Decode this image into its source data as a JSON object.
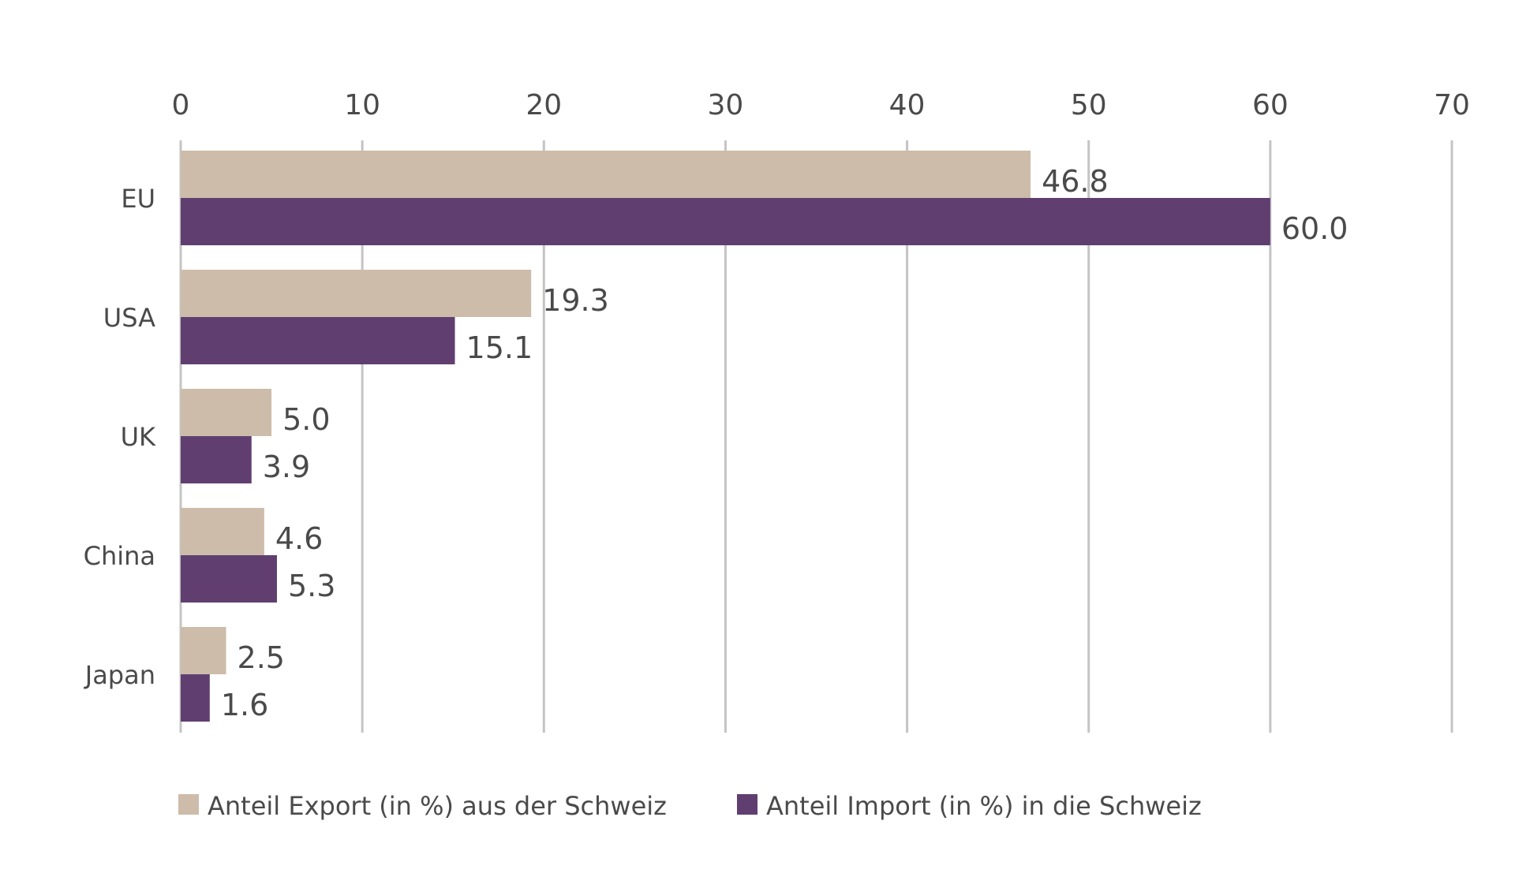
{
  "chart_data": {
    "type": "bar",
    "orientation": "horizontal",
    "categories": [
      "EU",
      "USA",
      "UK",
      "China",
      "Japan"
    ],
    "series": [
      {
        "name": "Anteil Export (in %) aus der Schweiz",
        "values": [
          46.8,
          19.3,
          5.0,
          4.6,
          2.5
        ],
        "labels": [
          "46.8",
          "19.3",
          "5.0",
          "4.6",
          "2.5"
        ],
        "color": "#cdbcaa"
      },
      {
        "name": "Anteil Import (in %) in die Schweiz",
        "values": [
          60.0,
          15.1,
          3.9,
          5.3,
          1.6
        ],
        "labels": [
          "60.0",
          "15.1",
          "3.9",
          "5.3",
          "1.6"
        ],
        "color": "#603f70"
      }
    ],
    "xlim": [
      0,
      70
    ],
    "xticks": [
      "0",
      "10",
      "20",
      "30",
      "40",
      "50",
      "60",
      "70"
    ],
    "x_axis_position": "top",
    "grid": true,
    "legend_position": "bottom-left",
    "title": "",
    "xlabel": "",
    "ylabel": ""
  }
}
